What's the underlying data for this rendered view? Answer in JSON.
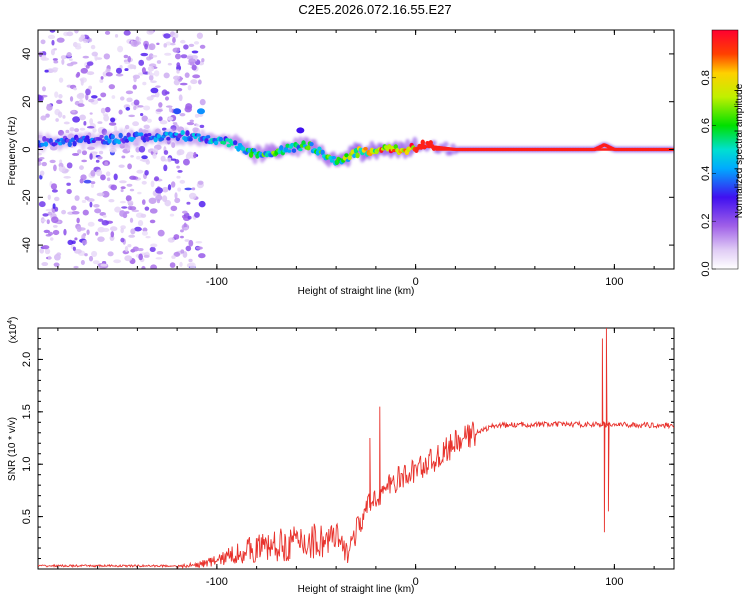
{
  "title": "C2E5.2026.072.16.55.E27",
  "chart_data": [
    {
      "type": "heatmap",
      "name": "spectrogram",
      "xlabel": "Height of straight line (km)",
      "ylabel": "Frequency (Hz)",
      "xlim": [
        -190,
        130
      ],
      "ylim": [
        -50,
        50
      ],
      "x_ticks": [
        {
          "value": -100,
          "label": "-100"
        },
        {
          "value": 0,
          "label": "0"
        },
        {
          "value": 100,
          "label": "100"
        }
      ],
      "y_ticks": [
        {
          "value": -40,
          "label": "-40"
        },
        {
          "value": -20,
          "label": "-20"
        },
        {
          "value": 0,
          "label": "0"
        },
        {
          "value": 20,
          "label": "20"
        },
        {
          "value": 40,
          "label": "40"
        }
      ],
      "colorbar": {
        "label": "Normalized spectral amplitude",
        "range": [
          0,
          1
        ],
        "ticks": [
          {
            "value": 0.0,
            "label": "0.0"
          },
          {
            "value": 0.2,
            "label": "0.2"
          },
          {
            "value": 0.4,
            "label": "0.4"
          },
          {
            "value": 0.6,
            "label": "0.6"
          },
          {
            "value": 0.8,
            "label": "0.8"
          }
        ]
      },
      "ridge": {
        "x": [
          -190,
          -160,
          -140,
          -120,
          -110,
          -100,
          -90,
          -80,
          -70,
          -60,
          -55,
          -50,
          -45,
          -40,
          -35,
          -30,
          -25,
          -20,
          -15,
          -10,
          -5,
          0,
          5,
          10,
          20,
          40,
          60,
          80,
          90,
          95,
          100,
          130
        ],
        "freq": [
          3,
          4,
          5,
          6,
          5,
          4,
          2,
          -2,
          -1,
          1,
          2,
          0,
          -3,
          -5,
          -4,
          -1,
          -1,
          0,
          1,
          0,
          0,
          1,
          2,
          1,
          0,
          0,
          0,
          0,
          0,
          2,
          0,
          0
        ],
        "amplitude": [
          0.35,
          0.35,
          0.38,
          0.4,
          0.4,
          0.45,
          0.5,
          0.55,
          0.6,
          0.55,
          0.55,
          0.6,
          0.6,
          0.6,
          0.65,
          0.7,
          0.75,
          0.85,
          0.88,
          0.9,
          0.9,
          0.95,
          0.95,
          0.95,
          0.96,
          0.96,
          0.96,
          0.96,
          0.96,
          0.96,
          0.96,
          0.96
        ]
      },
      "spots": [
        {
          "x": -108,
          "freq": 16,
          "amplitude": 0.4
        },
        {
          "x": -120,
          "freq": 16,
          "amplitude": 0.35
        },
        {
          "x": -58,
          "freq": 8,
          "amplitude": 0.3
        }
      ],
      "noise_region": {
        "x_start": -190,
        "x_end": -115,
        "amplitude": 0.15
      }
    },
    {
      "type": "line",
      "name": "snr",
      "xlabel": "Height of straight line (km)",
      "ylabel": "SNR (10 * v/v)",
      "y_multiplier": "(x10",
      "y_multiplier_exponent": "4",
      "y_multiplier_close": ")",
      "xlim": [
        -190,
        130
      ],
      "ylim": [
        0,
        2.3
      ],
      "x_ticks": [
        {
          "value": -100,
          "label": "-100"
        },
        {
          "value": 0,
          "label": "0"
        },
        {
          "value": 100,
          "label": "100"
        }
      ],
      "y_ticks": [
        {
          "value": 0.5,
          "label": "0.5"
        },
        {
          "value": 1.0,
          "label": "1.0"
        },
        {
          "value": 1.5,
          "label": "1.5"
        },
        {
          "value": 2.0,
          "label": "2.0"
        }
      ],
      "color": "#e8322c",
      "trend": {
        "x": [
          -190,
          -120,
          -110,
          -100,
          -90,
          -80,
          -70,
          -60,
          -50,
          -40,
          -35,
          -30,
          -25,
          -20,
          -15,
          -10,
          -5,
          0,
          10,
          20,
          30,
          40,
          60,
          80,
          90,
          130
        ],
        "y": [
          0.02,
          0.02,
          0.04,
          0.08,
          0.15,
          0.2,
          0.22,
          0.25,
          0.27,
          0.28,
          0.15,
          0.35,
          0.55,
          0.7,
          0.75,
          0.85,
          0.88,
          0.95,
          1.05,
          1.2,
          1.3,
          1.37,
          1.38,
          1.38,
          1.38,
          1.37
        ]
      },
      "spikes": [
        {
          "x": -18,
          "y": 1.55
        },
        {
          "x": -23,
          "y": 1.25
        },
        {
          "x": 94,
          "y": 2.2
        },
        {
          "x": 95,
          "y": 0.35
        },
        {
          "x": 96,
          "y": 2.3
        },
        {
          "x": 97,
          "y": 0.55
        }
      ]
    }
  ]
}
